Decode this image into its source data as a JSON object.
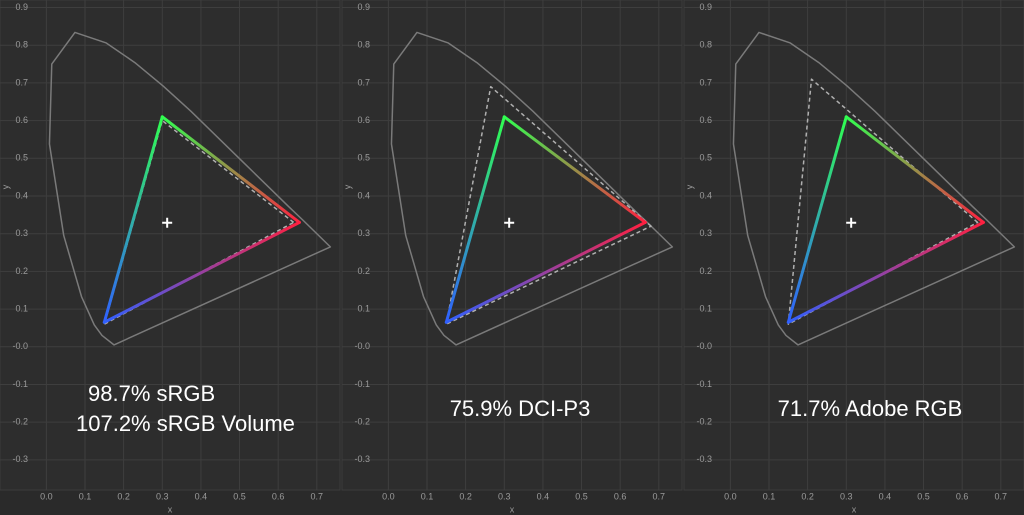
{
  "chart_data": [
    {
      "type": "line",
      "xlabel": "x",
      "ylabel": "y",
      "annotations": [
        "98.7% sRGB",
        "107.2% sRGB Volume"
      ],
      "xlim": [
        -0.12,
        0.76
      ],
      "ylim": [
        -0.38,
        0.92
      ],
      "xticks": [
        {
          "value": 0,
          "label": "0.0"
        },
        0.1,
        0.2,
        0.3,
        0.4,
        0.5,
        0.6,
        0.7
      ],
      "yticks": [
        -0.3,
        -0.2,
        -0.1,
        {
          "value": 0,
          "label": "-0.0"
        },
        0.1,
        0.2,
        0.3,
        0.4,
        0.5,
        0.6,
        0.7,
        0.8,
        0.9
      ],
      "grid": true,
      "series": [
        {
          "marker": "line",
          "color": "#7a7a7a",
          "closed": true,
          "x": [
            0.175,
            0.144,
            0.124,
            0.091,
            0.045,
            0.008,
            0.014,
            0.074,
            0.155,
            0.229,
            0.302,
            0.374,
            0.444,
            0.512,
            0.575,
            0.627,
            0.666,
            0.735
          ],
          "values": [
            0.005,
            0.03,
            0.058,
            0.133,
            0.295,
            0.538,
            0.75,
            0.834,
            0.806,
            0.754,
            0.692,
            0.625,
            0.555,
            0.487,
            0.424,
            0.372,
            0.334,
            0.265
          ]
        },
        {
          "marker": "dashed",
          "color": "#b0b0b0",
          "closed": true,
          "x": [
            0.64,
            0.3,
            0.15
          ],
          "values": [
            0.33,
            0.6,
            0.06
          ]
        },
        {
          "marker": "gradient",
          "color": [
            "#ff2040",
            "#30ff50",
            "#3060ff"
          ],
          "closed": true,
          "x": [
            0.655,
            0.3,
            0.15
          ],
          "values": [
            0.33,
            0.61,
            0.065
          ]
        },
        {
          "marker": "plus",
          "color": "#ffffff",
          "x": [
            0.3127
          ],
          "values": [
            0.329
          ]
        }
      ]
    },
    {
      "type": "line",
      "xlabel": "x",
      "ylabel": "y",
      "annotations": [
        "75.9% DCI-P3"
      ],
      "xlim": [
        -0.12,
        0.76
      ],
      "ylim": [
        -0.38,
        0.92
      ],
      "xticks": [
        {
          "value": 0,
          "label": "0.0"
        },
        0.1,
        0.2,
        0.3,
        0.4,
        0.5,
        0.6,
        0.7
      ],
      "yticks": [
        -0.3,
        -0.2,
        -0.1,
        {
          "value": 0,
          "label": "-0.0"
        },
        0.1,
        0.2,
        0.3,
        0.4,
        0.5,
        0.6,
        0.7,
        0.8,
        0.9
      ],
      "grid": true,
      "series": [
        {
          "marker": "line",
          "color": "#7a7a7a",
          "closed": true,
          "x": [
            0.175,
            0.144,
            0.124,
            0.091,
            0.045,
            0.008,
            0.014,
            0.074,
            0.155,
            0.229,
            0.302,
            0.374,
            0.444,
            0.512,
            0.575,
            0.627,
            0.666,
            0.735
          ],
          "values": [
            0.005,
            0.03,
            0.058,
            0.133,
            0.295,
            0.538,
            0.75,
            0.834,
            0.806,
            0.754,
            0.692,
            0.625,
            0.555,
            0.487,
            0.424,
            0.372,
            0.334,
            0.265
          ]
        },
        {
          "marker": "dashed",
          "color": "#b0b0b0",
          "closed": true,
          "x": [
            0.68,
            0.265,
            0.15
          ],
          "values": [
            0.32,
            0.69,
            0.06
          ]
        },
        {
          "marker": "gradient",
          "color": [
            "#ff2040",
            "#30ff50",
            "#3060ff"
          ],
          "closed": true,
          "x": [
            0.665,
            0.3,
            0.15
          ],
          "values": [
            0.33,
            0.61,
            0.065
          ]
        },
        {
          "marker": "plus",
          "color": "#ffffff",
          "x": [
            0.3127
          ],
          "values": [
            0.329
          ]
        }
      ]
    },
    {
      "type": "line",
      "xlabel": "x",
      "ylabel": "y",
      "annotations": [
        "71.7% Adobe RGB"
      ],
      "xlim": [
        -0.12,
        0.76
      ],
      "ylim": [
        -0.38,
        0.92
      ],
      "xticks": [
        {
          "value": 0,
          "label": "0.0"
        },
        0.1,
        0.2,
        0.3,
        0.4,
        0.5,
        0.6,
        0.7
      ],
      "yticks": [
        -0.3,
        -0.2,
        -0.1,
        {
          "value": 0,
          "label": "-0.0"
        },
        0.1,
        0.2,
        0.3,
        0.4,
        0.5,
        0.6,
        0.7,
        0.8,
        0.9
      ],
      "grid": true,
      "series": [
        {
          "marker": "line",
          "color": "#7a7a7a",
          "closed": true,
          "x": [
            0.175,
            0.144,
            0.124,
            0.091,
            0.045,
            0.008,
            0.014,
            0.074,
            0.155,
            0.229,
            0.302,
            0.374,
            0.444,
            0.512,
            0.575,
            0.627,
            0.666,
            0.735
          ],
          "values": [
            0.005,
            0.03,
            0.058,
            0.133,
            0.295,
            0.538,
            0.75,
            0.834,
            0.806,
            0.754,
            0.692,
            0.625,
            0.555,
            0.487,
            0.424,
            0.372,
            0.334,
            0.265
          ]
        },
        {
          "marker": "dashed",
          "color": "#b0b0b0",
          "closed": true,
          "x": [
            0.64,
            0.21,
            0.15
          ],
          "values": [
            0.33,
            0.71,
            0.06
          ]
        },
        {
          "marker": "gradient",
          "color": [
            "#ff2040",
            "#30ff50",
            "#3060ff"
          ],
          "closed": true,
          "x": [
            0.655,
            0.3,
            0.15
          ],
          "values": [
            0.33,
            0.61,
            0.065
          ]
        },
        {
          "marker": "plus",
          "color": "#ffffff",
          "x": [
            0.3127
          ],
          "values": [
            0.329
          ]
        }
      ]
    }
  ]
}
